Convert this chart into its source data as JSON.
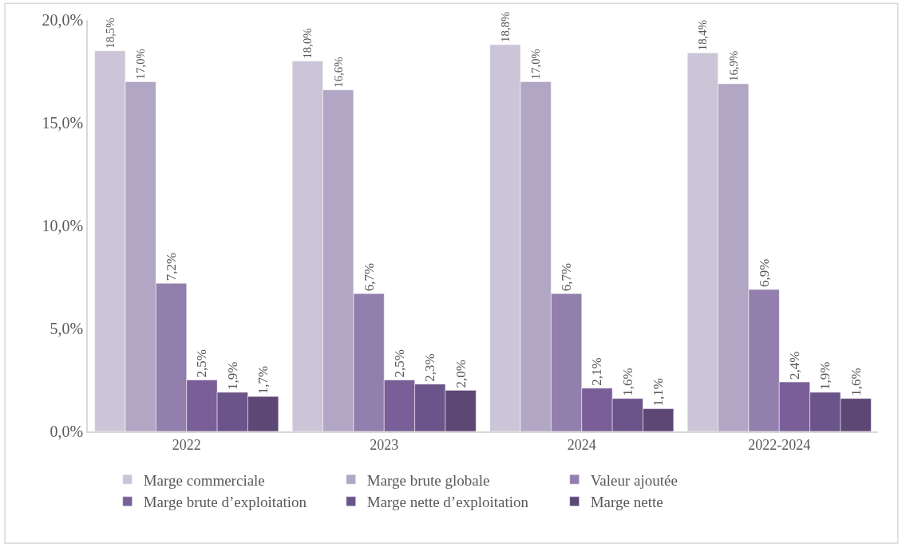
{
  "chart_data": {
    "type": "bar",
    "categories": [
      "2022",
      "2023",
      "2024",
      "2022-2024"
    ],
    "series": [
      {
        "name": "Marge commerciale",
        "color": "#ccc5d7",
        "values": [
          18.5,
          18.0,
          18.8,
          18.4
        ],
        "value_labels": [
          "18,5%",
          "18,0%",
          "18,8%",
          "18,4%"
        ]
      },
      {
        "name": "Marge brute globale",
        "color": "#b1a7c4",
        "values": [
          17.0,
          16.6,
          17.0,
          16.9
        ],
        "value_labels": [
          "17,0%",
          "16,6%",
          "17,0%",
          "16,9%"
        ]
      },
      {
        "name": "Valeur ajoutée",
        "color": "#937fad",
        "values": [
          7.2,
          6.7,
          6.7,
          6.9
        ],
        "value_labels": [
          "7,2%",
          "6,7%",
          "6,7%",
          "6,9%"
        ]
      },
      {
        "name": "Marge brute d’exploitation",
        "color": "#7a5e98",
        "values": [
          2.5,
          2.5,
          2.1,
          2.4
        ],
        "value_labels": [
          "2,5%",
          "2,5%",
          "2,1%",
          "2,4%"
        ]
      },
      {
        "name": "Marge nette d’exploitation",
        "color": "#6b5489",
        "values": [
          1.9,
          2.3,
          1.6,
          1.9
        ],
        "value_labels": [
          "1,9%",
          "2,3%",
          "1,6%",
          "1,9%"
        ]
      },
      {
        "name": "Marge nette",
        "color": "#5c4775",
        "values": [
          1.7,
          2.0,
          1.1,
          1.6
        ],
        "value_labels": [
          "1,7%",
          "2,0%",
          "1,1%",
          "1,6%"
        ]
      }
    ],
    "ylim": [
      0,
      20
    ],
    "yticks": [
      {
        "value": 0,
        "label": "0,0%"
      },
      {
        "value": 5,
        "label": "5,0%"
      },
      {
        "value": 10,
        "label": "10,0%"
      },
      {
        "value": 15,
        "label": "15,0%"
      },
      {
        "value": 20,
        "label": "20,0%"
      }
    ],
    "legend": "bottom"
  }
}
